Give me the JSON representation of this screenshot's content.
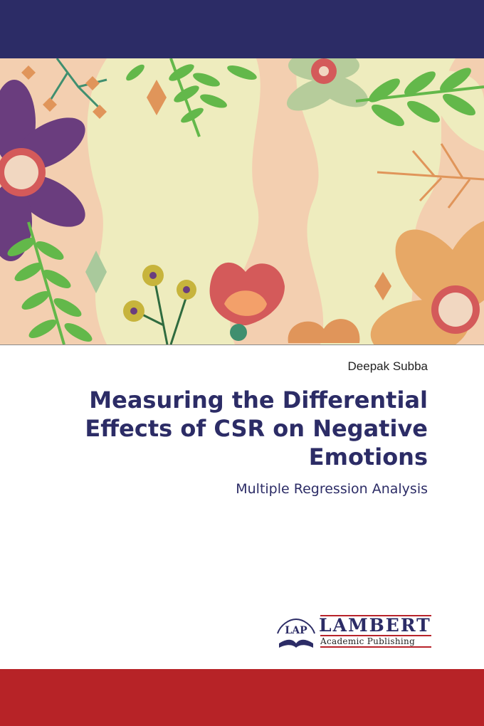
{
  "book": {
    "author": "Deepak Subba",
    "title": "Measuring the Differential Effects of CSR on Negative Emotions",
    "subtitle": "Multiple Regression Analysis"
  },
  "publisher": {
    "logo_mark": "LAP",
    "name": "LAMBERT",
    "tagline": "Academic Publishing"
  },
  "colors": {
    "navy": "#2c2c66",
    "red": "#b72327",
    "peach": "#f3cfb0",
    "cream": "#eeecbe"
  }
}
